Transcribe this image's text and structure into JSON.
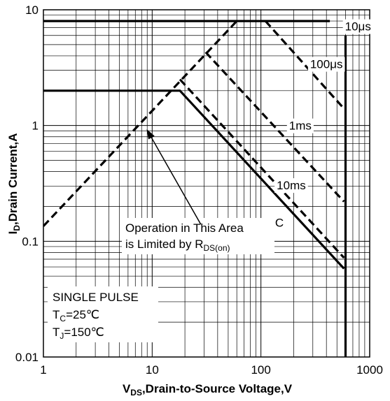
{
  "chart_data": {
    "type": "line",
    "x_scale": "log",
    "y_scale": "log",
    "xlim": [
      1,
      1000
    ],
    "ylim": [
      0.01,
      10
    ],
    "grid": true,
    "xlabel": {
      "main": "V",
      "sub": "DS",
      "rest": ",Drain-to-Source Voltage,V"
    },
    "ylabel": {
      "main": "I",
      "sub": "D",
      "rest": ",Drain Current,A"
    },
    "x_ticks": [
      {
        "value": 1,
        "label": "1"
      },
      {
        "value": 10,
        "label": "10"
      },
      {
        "value": 100,
        "label": "100"
      },
      {
        "value": 1000,
        "label": "1000"
      }
    ],
    "y_ticks": [
      {
        "value": 10,
        "label": "10"
      },
      {
        "value": 1,
        "label": "1"
      },
      {
        "value": 0.1,
        "label": "0.1"
      },
      {
        "value": 0.01,
        "label": "0.01"
      }
    ],
    "series": [
      {
        "id": "rds_on",
        "style": "dashed",
        "points": [
          [
            1,
            0.135
          ],
          [
            60,
            8.0
          ]
        ]
      },
      {
        "id": "pulse_10us",
        "style": "solid",
        "points": [
          [
            1,
            8.0
          ],
          [
            430,
            8.0
          ]
        ]
      },
      {
        "id": "pulse_100us",
        "style": "dashed",
        "points": [
          [
            110,
            8.0
          ],
          [
            580,
            1.4
          ]
        ]
      },
      {
        "id": "pulse_1ms",
        "style": "dashed",
        "points": [
          [
            31,
            4.3
          ],
          [
            580,
            0.22
          ]
        ]
      },
      {
        "id": "pulse_10ms",
        "style": "dashed",
        "points": [
          [
            18,
            2.5
          ],
          [
            580,
            0.072
          ]
        ]
      },
      {
        "id": "dc",
        "style": "solid",
        "points": [
          [
            1,
            2.0
          ],
          [
            18,
            2.0
          ],
          [
            580,
            0.058
          ]
        ]
      },
      {
        "id": "bvdss",
        "style": "solid",
        "points": [
          [
            600,
            6.0
          ],
          [
            600,
            0.01
          ]
        ]
      }
    ],
    "curve_labels": [
      {
        "text": "10μs",
        "x": 780,
        "y": 7.2
      },
      {
        "text": "100μs",
        "x": 400,
        "y": 3.4
      },
      {
        "text": "1ms",
        "x": 230,
        "y": 1.0
      },
      {
        "text": "10ms",
        "x": 190,
        "y": 0.305
      },
      {
        "text": "DC",
        "x": 135,
        "y": 0.145
      }
    ],
    "annotation": {
      "line1": "Operation in This Area",
      "line2_main": "is Limited by R",
      "line2_sub": "DS(on)",
      "arrow_tip": [
        8.9,
        0.93
      ],
      "arrow_tail": [
        28,
        0.14
      ]
    },
    "conditions": {
      "pulse": "SINGLE PULSE",
      "tc_main": "T",
      "tc_sub": "C",
      "tc_rest": "=25℃",
      "tj_main": "T",
      "tj_sub": "J",
      "tj_rest": "=150℃"
    }
  }
}
